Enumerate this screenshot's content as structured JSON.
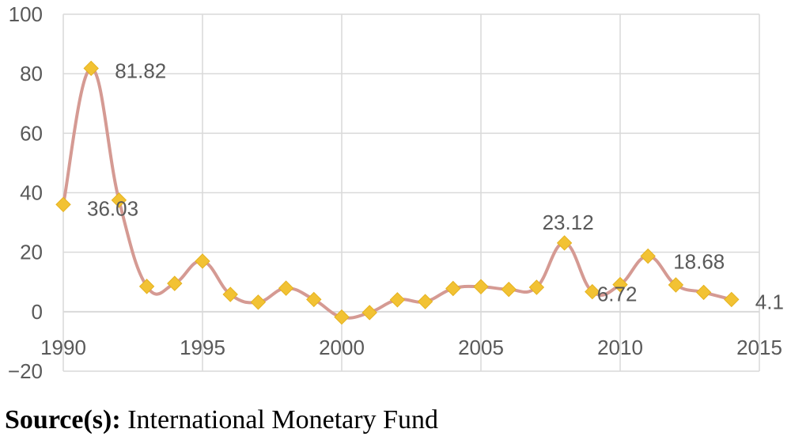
{
  "chart_data": {
    "type": "line",
    "title": "",
    "xlabel": "",
    "ylabel": "",
    "x": [
      1990,
      1991,
      1992,
      1993,
      1994,
      1995,
      1996,
      1997,
      1998,
      1999,
      2000,
      2001,
      2002,
      2003,
      2004,
      2005,
      2006,
      2007,
      2008,
      2009,
      2010,
      2011,
      2012,
      2013,
      2014
    ],
    "series": [
      {
        "values": [
          36.03,
          81.82,
          37.5,
          8.5,
          9.5,
          17.0,
          5.8,
          3.2,
          7.9,
          4.1,
          -1.8,
          -0.3,
          4.0,
          3.4,
          7.8,
          8.4,
          7.5,
          8.2,
          23.12,
          6.72,
          9.1,
          18.68,
          9.0,
          6.5,
          4.1
        ]
      }
    ],
    "xticks": [
      "1990",
      "1995",
      "2000",
      "2005",
      "2010",
      "2015"
    ],
    "yticks": [
      "100",
      "80",
      "60",
      "40",
      "20",
      "0",
      "−20"
    ],
    "xlim": [
      1990,
      2015
    ],
    "ylim": [
      -20,
      100
    ],
    "grid": true,
    "annotations": [
      {
        "x": 1991,
        "text": "81.82"
      },
      {
        "x": 1990,
        "text": "36.03"
      },
      {
        "x": 2008,
        "text": "23.12"
      },
      {
        "x": 2009,
        "text": "6.72"
      },
      {
        "x": 2011,
        "text": "18.68"
      },
      {
        "x": 2014,
        "text": "4.1"
      }
    ],
    "colors": {
      "line": "#d59a93",
      "marker": "#f2c233",
      "marker_edge": "#e5b21f",
      "grid": "#d9d9d9"
    }
  },
  "source": {
    "label": "Source(s):",
    "text": " International Monetary Fund"
  }
}
